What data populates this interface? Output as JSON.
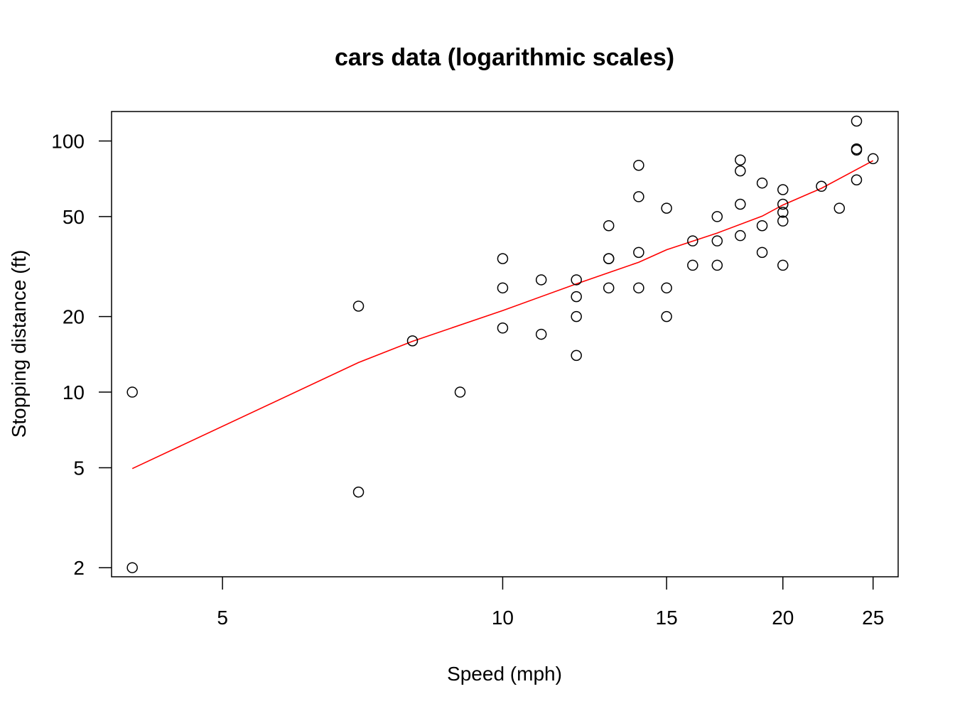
{
  "chart_data": {
    "type": "scatter",
    "title": "cars data (logarithmic scales)",
    "xlabel": "Speed (mph)",
    "ylabel": "Stopping distance (ft)",
    "x_scale": "log",
    "y_scale": "log",
    "xlim": [
      3.8,
      26.6
    ],
    "ylim": [
      1.84,
      131
    ],
    "x_ticks": [
      5,
      10,
      15,
      20,
      25
    ],
    "y_ticks": [
      2,
      5,
      10,
      20,
      50,
      100
    ],
    "grid": false,
    "legend": "none",
    "point_color": "#000000",
    "line_color": "#ff0000",
    "points": [
      [
        4,
        2
      ],
      [
        4,
        10
      ],
      [
        7,
        4
      ],
      [
        7,
        22
      ],
      [
        8,
        16
      ],
      [
        9,
        10
      ],
      [
        10,
        18
      ],
      [
        10,
        26
      ],
      [
        10,
        34
      ],
      [
        11,
        17
      ],
      [
        11,
        28
      ],
      [
        12,
        14
      ],
      [
        12,
        20
      ],
      [
        12,
        24
      ],
      [
        12,
        28
      ],
      [
        13,
        26
      ],
      [
        13,
        34
      ],
      [
        13,
        34
      ],
      [
        13,
        46
      ],
      [
        14,
        26
      ],
      [
        14,
        36
      ],
      [
        14,
        60
      ],
      [
        14,
        80
      ],
      [
        15,
        20
      ],
      [
        15,
        26
      ],
      [
        15,
        54
      ],
      [
        16,
        32
      ],
      [
        16,
        40
      ],
      [
        17,
        32
      ],
      [
        17,
        40
      ],
      [
        17,
        50
      ],
      [
        18,
        42
      ],
      [
        18,
        56
      ],
      [
        18,
        76
      ],
      [
        18,
        84
      ],
      [
        19,
        36
      ],
      [
        19,
        46
      ],
      [
        19,
        68
      ],
      [
        20,
        32
      ],
      [
        20,
        48
      ],
      [
        20,
        52
      ],
      [
        20,
        56
      ],
      [
        20,
        64
      ],
      [
        22,
        66
      ],
      [
        23,
        54
      ],
      [
        24,
        70
      ],
      [
        24,
        92
      ],
      [
        24,
        93
      ],
      [
        24,
        120
      ],
      [
        25,
        85
      ]
    ],
    "fit_line": [
      [
        4,
        4.96
      ],
      [
        7,
        13.12
      ],
      [
        8,
        15.94
      ],
      [
        10,
        21.12
      ],
      [
        12,
        26.98
      ],
      [
        14,
        32.9
      ],
      [
        15,
        36.9
      ],
      [
        17,
        43.0
      ],
      [
        19,
        50.2
      ],
      [
        20,
        55.6
      ],
      [
        22,
        64.8
      ],
      [
        25,
        83.5
      ]
    ]
  }
}
